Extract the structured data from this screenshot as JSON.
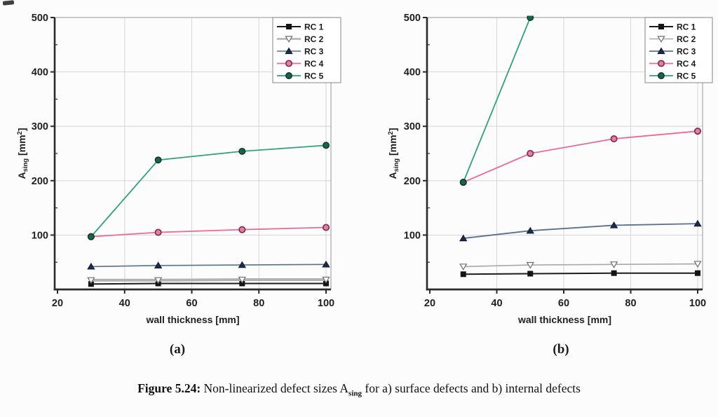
{
  "figure": {
    "caption_label": "Figure 5.24:",
    "caption_before_sub": " Non-linearized defect sizes A",
    "caption_sub": "sing",
    "caption_after_sub": " for a) surface defects and b) internal defects",
    "sublabels": [
      "(a)",
      "(b)"
    ]
  },
  "colors": {
    "grid": "#d9d9d9",
    "frame_light": "#ababab",
    "axis_dark": "#2a2a2a",
    "tick_text": "#1f1f1f",
    "legend_border": "#9a9a9a",
    "rc1": "#1c1c1c",
    "rc2_line": "#aeaeae",
    "rc3_line": "#5b6f93",
    "rc3_marker": "#1c2b4d",
    "rc4_line": "#ec6a92",
    "rc4_marker_edge": "#8e2450",
    "rc5_line": "#31a17d",
    "rc5_marker": "#19654c"
  },
  "chart_data": [
    {
      "type": "line",
      "panel": "a",
      "subject": "surface defects",
      "xlabel": "wall thickness [mm]",
      "ylabel": "A_sing [mm2]",
      "ylabel_parts": {
        "main": "A",
        "sub": "sing",
        "unit_pre": " [mm",
        "sup": "2",
        "unit_post": "]"
      },
      "xlim": [
        20,
        100
      ],
      "ylim": [
        0,
        500
      ],
      "xticks": [
        20,
        40,
        60,
        80,
        100
      ],
      "yticks": [
        100,
        200,
        300,
        400,
        500
      ],
      "grid": true,
      "legend_position": "top-right",
      "x": [
        30,
        50,
        75,
        100
      ],
      "series": [
        {
          "name": "RC 1",
          "color": "#1c1c1c",
          "lw": 2,
          "marker": "square",
          "marker_fill": "#141414",
          "marker_stroke": "#141414",
          "values": [
            10,
            11,
            11,
            11
          ]
        },
        {
          "name": "RC 2",
          "color": "#b2b2b2",
          "lw": 4,
          "marker": "triangle-down",
          "marker_fill": "#ffffff",
          "marker_stroke": "#6e6e6e",
          "values": [
            17,
            17,
            18,
            18
          ]
        },
        {
          "name": "RC 3",
          "color": "#5b6f93",
          "lw": 1.6,
          "marker": "triangle-up",
          "marker_fill": "#1c2b4d",
          "marker_stroke": "#10182b",
          "values": [
            42,
            44,
            45,
            46
          ]
        },
        {
          "name": "RC 4",
          "color": "#ec6a92",
          "lw": 1.8,
          "marker": "circle-open",
          "marker_fill": "#d486a2",
          "marker_stroke": "#8e2450",
          "values": [
            97,
            105,
            110,
            114
          ]
        },
        {
          "name": "RC 5",
          "color": "#31a17d",
          "lw": 1.8,
          "marker": "circle",
          "marker_fill": "#19654c",
          "marker_stroke": "#0b2e22",
          "values": [
            97,
            238,
            254,
            265
          ]
        }
      ]
    },
    {
      "type": "line",
      "panel": "b",
      "subject": "internal defects",
      "xlabel": "wall thickness [mm]",
      "ylabel": "A_sing [mm2]",
      "ylabel_parts": {
        "main": "A",
        "sub": "sing",
        "unit_pre": " [mm",
        "sup": "2",
        "unit_post": "]"
      },
      "xlim": [
        20,
        100
      ],
      "ylim": [
        0,
        500
      ],
      "xticks": [
        20,
        40,
        60,
        80,
        100
      ],
      "yticks": [
        100,
        200,
        300,
        400,
        500
      ],
      "grid": true,
      "legend_position": "top-right",
      "x": [
        30,
        50,
        75,
        100
      ],
      "series": [
        {
          "name": "RC 1",
          "color": "#1c1c1c",
          "lw": 2,
          "marker": "square",
          "marker_fill": "#141414",
          "marker_stroke": "#141414",
          "values": [
            28,
            29,
            30,
            30
          ]
        },
        {
          "name": "RC 2",
          "color": "#a8a8a8",
          "lw": 1.6,
          "marker": "triangle-down",
          "marker_fill": "#ffffff",
          "marker_stroke": "#6e6e6e",
          "values": [
            42,
            45,
            46,
            47
          ]
        },
        {
          "name": "RC 3",
          "color": "#5b6f93",
          "lw": 1.8,
          "marker": "triangle-up",
          "marker_fill": "#1c2b4d",
          "marker_stroke": "#10182b",
          "values": [
            94,
            108,
            118,
            121
          ]
        },
        {
          "name": "RC 4",
          "color": "#ec6a92",
          "lw": 1.8,
          "marker": "circle-open",
          "marker_fill": "#d486a2",
          "marker_stroke": "#8e2450",
          "values": [
            197,
            250,
            277,
            291
          ]
        },
        {
          "name": "RC 5",
          "color": "#31a17d",
          "lw": 1.8,
          "marker": "circle",
          "marker_fill": "#19654c",
          "marker_stroke": "#0b2e22",
          "values": [
            197,
            500,
            null,
            null
          ],
          "clipped_above_ylim": true
        }
      ]
    }
  ]
}
